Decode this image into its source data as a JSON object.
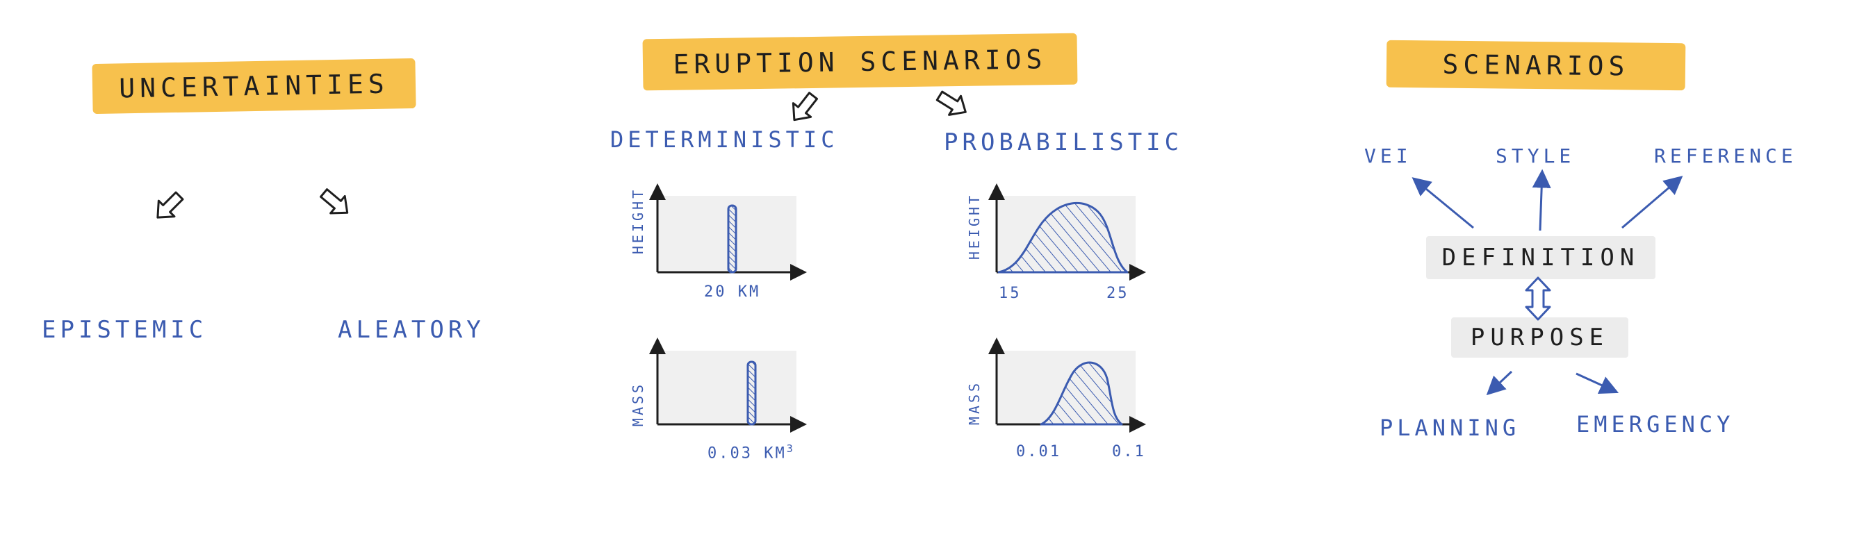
{
  "colors": {
    "highlight": "#f7c14d",
    "ink": "#1e1e1e",
    "blue": "#3b5bb0",
    "panel": "#f0f0f0"
  },
  "uncertainties": {
    "title": "UNCERTAINTIES",
    "left": "EPISTEMIC",
    "right": "ALEATORY"
  },
  "eruption": {
    "title": "ERUPTION SCENARIOS",
    "deterministic": "DETERMINISTIC",
    "probabilistic": "PROBABILISTIC",
    "det_height": {
      "ylabel": "HEIGHT",
      "tick": "20 KM"
    },
    "det_mass": {
      "ylabel": "MASS",
      "tick": "0.03 KM",
      "tick_sup": "3"
    },
    "prob_height": {
      "ylabel": "HEIGHT",
      "tick_low": "15",
      "tick_high": "25"
    },
    "prob_mass": {
      "ylabel": "MASS",
      "tick_low": "0.01",
      "tick_high": "0.1"
    }
  },
  "scenarios": {
    "title": "SCENARIOS",
    "top_left": "VEI",
    "top_mid": "STYLE",
    "top_right": "REFERENCE",
    "definition": "DEFINITION",
    "purpose": "PURPOSE",
    "bottom_left": "PLANNING",
    "bottom_right": "EMERGENCY"
  }
}
